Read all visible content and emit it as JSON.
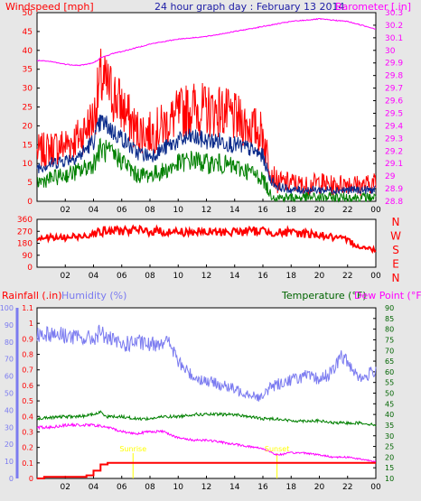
{
  "chart_data": [
    {
      "type": "line",
      "title": "24 hour graph day : February 13 2014",
      "left_axis_title": "Windspeed [mph]",
      "right_axis_title": "Barometer [.in]",
      "x_ticks": [
        "02",
        "04",
        "06",
        "08",
        "10",
        "12",
        "14",
        "16",
        "18",
        "20",
        "22",
        "00"
      ],
      "left_axis": {
        "ylim": [
          0,
          50
        ],
        "ticks": [
          "0",
          "5",
          "10",
          "15",
          "20",
          "25",
          "30",
          "35",
          "40",
          "45",
          "50"
        ]
      },
      "right_axis": {
        "ylim": [
          28.8,
          30.3
        ],
        "ticks": [
          "28.8",
          "28.9",
          "29",
          "29.1",
          "29.2",
          "29.3",
          "29.4",
          "29.5",
          "29.6",
          "29.7",
          "29.8",
          "29.9",
          "30",
          "30.1",
          "30.2",
          "30.3"
        ]
      },
      "hours": [
        0,
        1,
        2,
        3,
        4,
        4.5,
        5,
        5.5,
        6,
        7,
        8,
        9,
        10,
        11,
        12,
        13,
        14,
        15,
        16,
        16.5,
        17,
        18,
        19,
        20,
        21,
        22,
        23,
        24
      ],
      "series": [
        {
          "axis": "left",
          "color": "#ff0000",
          "values": [
            13,
            14,
            15,
            17,
            22,
            32,
            30,
            28,
            25,
            19,
            18,
            20,
            23,
            25,
            24,
            24,
            22,
            20,
            18,
            9,
            5,
            5,
            4,
            5,
            4,
            5,
            4,
            5
          ]
        },
        {
          "axis": "left",
          "color": "#0a2a8a",
          "values": [
            9,
            10,
            11,
            12,
            16,
            21,
            20,
            18,
            17,
            13,
            12,
            14,
            16,
            17,
            16,
            16,
            15,
            14,
            12,
            6,
            4,
            3,
            3,
            3,
            3,
            3,
            3,
            3
          ]
        },
        {
          "axis": "left",
          "color": "#008000",
          "values": [
            5,
            6,
            7,
            8,
            10,
            14,
            13,
            12,
            11,
            7,
            7,
            8,
            10,
            11,
            10,
            10,
            9,
            8,
            6,
            2,
            1,
            1,
            1,
            1,
            1,
            1,
            1,
            1
          ]
        },
        {
          "axis": "right",
          "color": "#ff00ff",
          "values": [
            29.92,
            29.91,
            29.89,
            29.88,
            29.9,
            29.94,
            29.96,
            29.98,
            29.99,
            30.02,
            30.05,
            30.07,
            30.09,
            30.1,
            30.11,
            30.13,
            30.15,
            30.17,
            30.19,
            30.2,
            30.21,
            30.23,
            30.24,
            30.25,
            30.24,
            30.23,
            30.2,
            30.17
          ]
        }
      ]
    },
    {
      "type": "line",
      "y_ticks": [
        "0",
        "90",
        "180",
        "270",
        "360"
      ],
      "ylim": [
        0,
        360
      ],
      "direction_labels": [
        "N",
        "W",
        "S",
        "E",
        "N"
      ],
      "x_ticks": [
        "02",
        "04",
        "06",
        "08",
        "10",
        "12",
        "14",
        "16",
        "18",
        "20",
        "22",
        "00"
      ],
      "hours": [
        0,
        1,
        2,
        3,
        4,
        5,
        6,
        7,
        8,
        9,
        10,
        11,
        12,
        13,
        14,
        15,
        16,
        17,
        18,
        19,
        19.5,
        20,
        21,
        22,
        22.5,
        23,
        24
      ],
      "series": [
        {
          "color": "#ff0000",
          "values": [
            225,
            220,
            222,
            230,
            260,
            270,
            278,
            275,
            272,
            268,
            265,
            266,
            262,
            265,
            268,
            270,
            275,
            262,
            258,
            254,
            250,
            245,
            222,
            200,
            175,
            150,
            130
          ]
        }
      ]
    },
    {
      "type": "line",
      "titles": {
        "rainfall": "Rainfall (.in)",
        "humidity": "Humidity (%)",
        "temperature": "Temperature (°F)",
        "dew_point": "Dew Point (°F)"
      },
      "x_ticks": [
        "02",
        "04",
        "06",
        "08",
        "10",
        "12",
        "14",
        "16",
        "18",
        "20",
        "22",
        "00"
      ],
      "rain_axis": {
        "ylim": [
          0,
          1.1
        ],
        "ticks": [
          "0",
          "0.1",
          "0.2",
          "0.3",
          "0.4",
          "0.5",
          "0.6",
          "0.7",
          "0.8",
          "0.9",
          "1",
          "1.1"
        ]
      },
      "humidity_axis": {
        "ylim": [
          0,
          100
        ],
        "ticks": [
          "0",
          "10",
          "20",
          "30",
          "40",
          "50",
          "60",
          "70",
          "80",
          "90",
          "100"
        ]
      },
      "temperature_axis": {
        "ylim": [
          10,
          90
        ],
        "ticks": [
          "10",
          "15",
          "20",
          "25",
          "30",
          "35",
          "40",
          "45",
          "50",
          "55",
          "60",
          "65",
          "70",
          "75",
          "80",
          "85",
          "90"
        ]
      },
      "annotations": [
        {
          "hour": 6.8,
          "text": "Sunrise"
        },
        {
          "hour": 17.0,
          "text": "Sunset"
        }
      ],
      "series": [
        {
          "name": "Humidity (%)",
          "axis": "humidity",
          "color": "#7b7bf0",
          "hours": [
            0,
            1,
            2,
            3,
            4,
            4.5,
            5,
            6,
            7,
            8,
            9,
            9.5,
            10,
            11,
            12,
            13,
            14,
            15,
            16,
            16.5,
            17,
            18,
            19,
            20,
            21,
            21.5,
            22,
            23,
            24
          ],
          "values": [
            85,
            85,
            84,
            82,
            82,
            86,
            82,
            78,
            80,
            78,
            81,
            78,
            68,
            60,
            57,
            55,
            52,
            50,
            47,
            54,
            55,
            58,
            60,
            58,
            63,
            72,
            68,
            58,
            64
          ]
        },
        {
          "name": "Temperature (°F)",
          "axis": "temperature",
          "color": "#008000",
          "hours": [
            0,
            2,
            3,
            4,
            4.5,
            5,
            6,
            7,
            8,
            9,
            10,
            11,
            12,
            13,
            14,
            15,
            16,
            17,
            18,
            19,
            20,
            21,
            22,
            23,
            24
          ],
          "values": [
            38,
            39,
            39,
            40,
            41,
            39,
            39,
            38,
            38,
            39,
            39,
            40,
            40,
            40,
            40,
            39,
            38,
            38,
            37,
            37,
            37,
            36,
            36,
            36,
            35
          ]
        },
        {
          "name": "Dew Point (°F)",
          "axis": "temperature",
          "color": "#ff00ff",
          "hours": [
            0,
            1,
            2,
            3,
            4,
            5,
            5.5,
            6,
            7,
            8,
            9,
            10,
            11,
            12,
            13,
            14,
            15,
            16,
            17,
            18,
            19,
            20,
            21,
            22,
            23,
            24
          ],
          "values": [
            34,
            34,
            35,
            35,
            35,
            34,
            33,
            32,
            31,
            32,
            32,
            29,
            28,
            28,
            27,
            26,
            25,
            24,
            21,
            22,
            22,
            21,
            20,
            20,
            19,
            18
          ]
        },
        {
          "name": "Rainfall (.in)",
          "axis": "rain",
          "color": "#ff0000",
          "hours": [
            0,
            0.5,
            3,
            3.5,
            4,
            4.5,
            5,
            24
          ],
          "values": [
            0,
            0.01,
            0.01,
            0.02,
            0.05,
            0.09,
            0.1,
            0.1
          ]
        }
      ]
    }
  ]
}
